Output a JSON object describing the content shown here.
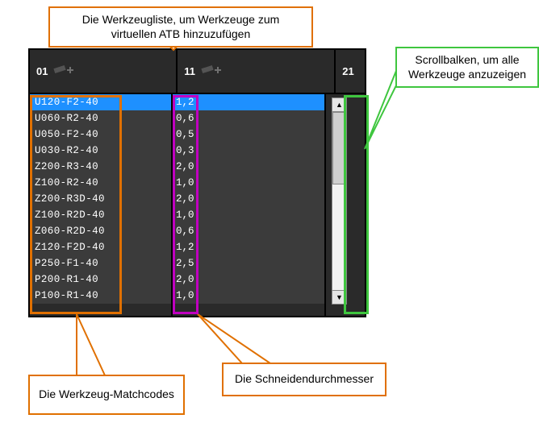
{
  "callouts": {
    "top": "Die Werkzeugliste, um Werkzeuge zum virtuellen ATB hinzuzufügen",
    "right": "Scrollbalken, um alle Werkzeuge anzuzeigen",
    "bottom_left": "Die Werkzeug-Matchcodes",
    "bottom_right": "Die Schneidendurchmesser"
  },
  "headers": {
    "c1": "01",
    "c2": "11",
    "c3": "21"
  },
  "rows": [
    {
      "code": "U120-F2-40",
      "dia": "1,2",
      "selected": true
    },
    {
      "code": "U060-R2-40",
      "dia": "0,6",
      "selected": false
    },
    {
      "code": "U050-F2-40",
      "dia": "0,5",
      "selected": false
    },
    {
      "code": "U030-R2-40",
      "dia": "0,3",
      "selected": false
    },
    {
      "code": "Z200-R3-40",
      "dia": "2,0",
      "selected": false
    },
    {
      "code": "Z100-R2-40",
      "dia": "1,0",
      "selected": false
    },
    {
      "code": "Z200-R3D-40",
      "dia": "2,0",
      "selected": false
    },
    {
      "code": "Z100-R2D-40",
      "dia": "1,0",
      "selected": false
    },
    {
      "code": "Z060-R2D-40",
      "dia": "0,6",
      "selected": false
    },
    {
      "code": "Z120-F2D-40",
      "dia": "1,2",
      "selected": false
    },
    {
      "code": "P250-F1-40",
      "dia": "2,5",
      "selected": false
    },
    {
      "code": "P200-R1-40",
      "dia": "2,0",
      "selected": false
    },
    {
      "code": "P100-R1-40",
      "dia": "1,0",
      "selected": false
    }
  ],
  "colors": {
    "panel_bg": "#2a2a2a",
    "row_bg": "#3b3b3b",
    "row_selected": "#1e90ff",
    "text": "#ffffff",
    "callout_orange": "#e07000",
    "callout_green": "#3fc63f",
    "highlight_magenta": "#c000c0"
  }
}
